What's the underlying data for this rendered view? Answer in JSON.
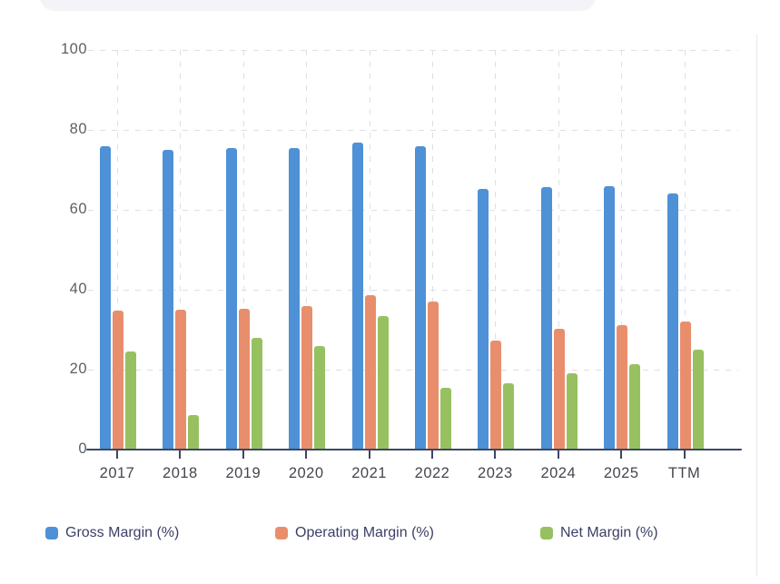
{
  "colors": {
    "gross": "#4e91d6",
    "operating": "#e98e6c",
    "net": "#97c161",
    "axis": "#3b4764",
    "grid": "#dfdfe4",
    "y_label": "#5c5f66",
    "x_label": "#44464f",
    "legend_text": "#3b3f66",
    "toolbar_card": "#f4f4f8",
    "toolbar_button": "#66666e",
    "divider": "#e9e9ed"
  },
  "chart_data": {
    "type": "bar",
    "title": "",
    "categories": [
      "2017",
      "2018",
      "2019",
      "2020",
      "2021",
      "2022",
      "2023",
      "2024",
      "2025",
      "TTM"
    ],
    "series": [
      {
        "name": "Gross Margin (%)",
        "color": "#4e91d6",
        "values": [
          75.9,
          74.9,
          75.4,
          75.4,
          76.9,
          75.9,
          65.3,
          65.6,
          66.0,
          64.2
        ]
      },
      {
        "name": "Operating Margin (%)",
        "color": "#e98e6c",
        "values": [
          34.8,
          34.9,
          35.3,
          36.0,
          38.6,
          37.0,
          27.2,
          30.2,
          31.2,
          32.0
        ]
      },
      {
        "name": "Net Margin (%)",
        "color": "#97c161",
        "values": [
          24.5,
          8.7,
          27.9,
          26.0,
          33.5,
          15.5,
          16.6,
          19.2,
          21.4,
          25.1
        ]
      }
    ],
    "ylim": [
      0,
      100
    ],
    "yticks": [
      0,
      20,
      40,
      60,
      80,
      100
    ],
    "grid": "dashed",
    "legend_position": "bottom"
  }
}
